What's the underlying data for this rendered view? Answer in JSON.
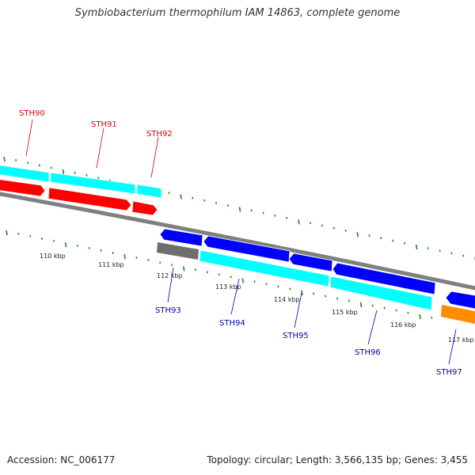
{
  "header": {
    "title": "Symbiobacterium thermophilum IAM 14863, complete genome"
  },
  "footer": {
    "accession": "Accession: NC_006177",
    "summary": "Topology: circular; Length: 3,566,135 bp; Genes: 3,455"
  },
  "scale_labels": [
    "110 kbp",
    "111 kbp",
    "112 kbp",
    "113 kbp",
    "114 kbp",
    "115 kbp",
    "116 kbp",
    "117 kbp"
  ],
  "genes": {
    "forward": [
      {
        "label": "STH90",
        "color": "#e00000"
      },
      {
        "label": "STH91",
        "color": "#e00000"
      },
      {
        "label": "STH92",
        "color": "#e00000"
      }
    ],
    "reverse": [
      {
        "label": "STH93",
        "color": "#0000b0"
      },
      {
        "label": "STH94",
        "color": "#0000b0"
      },
      {
        "label": "STH95",
        "color": "#0000b0"
      },
      {
        "label": "STH96",
        "color": "#0000b0"
      },
      {
        "label": "STH97",
        "color": "#0000b0"
      }
    ]
  },
  "colors": {
    "cds_forward": "#ff0000",
    "cds_reverse": "#0000ff",
    "gene_bar": "#00ffff",
    "backbone": "#808080",
    "other_feature": "#ff8c00",
    "tick": "#1a8a1a"
  }
}
